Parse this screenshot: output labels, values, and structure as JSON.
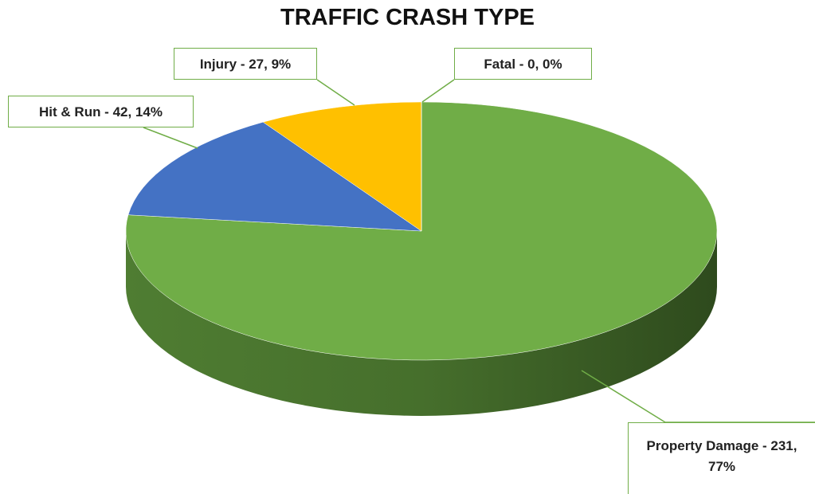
{
  "chart_data": {
    "type": "pie",
    "title": "TRAFFIC CRASH TYPE",
    "categories": [
      "Property Damage",
      "Hit & Run",
      "Injury",
      "Fatal"
    ],
    "values": [
      231,
      42,
      27,
      0
    ],
    "value_labels": [
      "Property Damage - 231, 77%",
      "Hit & Run - 42, 14%",
      "Injury - 27, 9%",
      "Fatal - 0, 0%"
    ],
    "colors": [
      "#70ad47",
      "#4472c4",
      "#ffc000",
      "#a5a5a5"
    ]
  }
}
